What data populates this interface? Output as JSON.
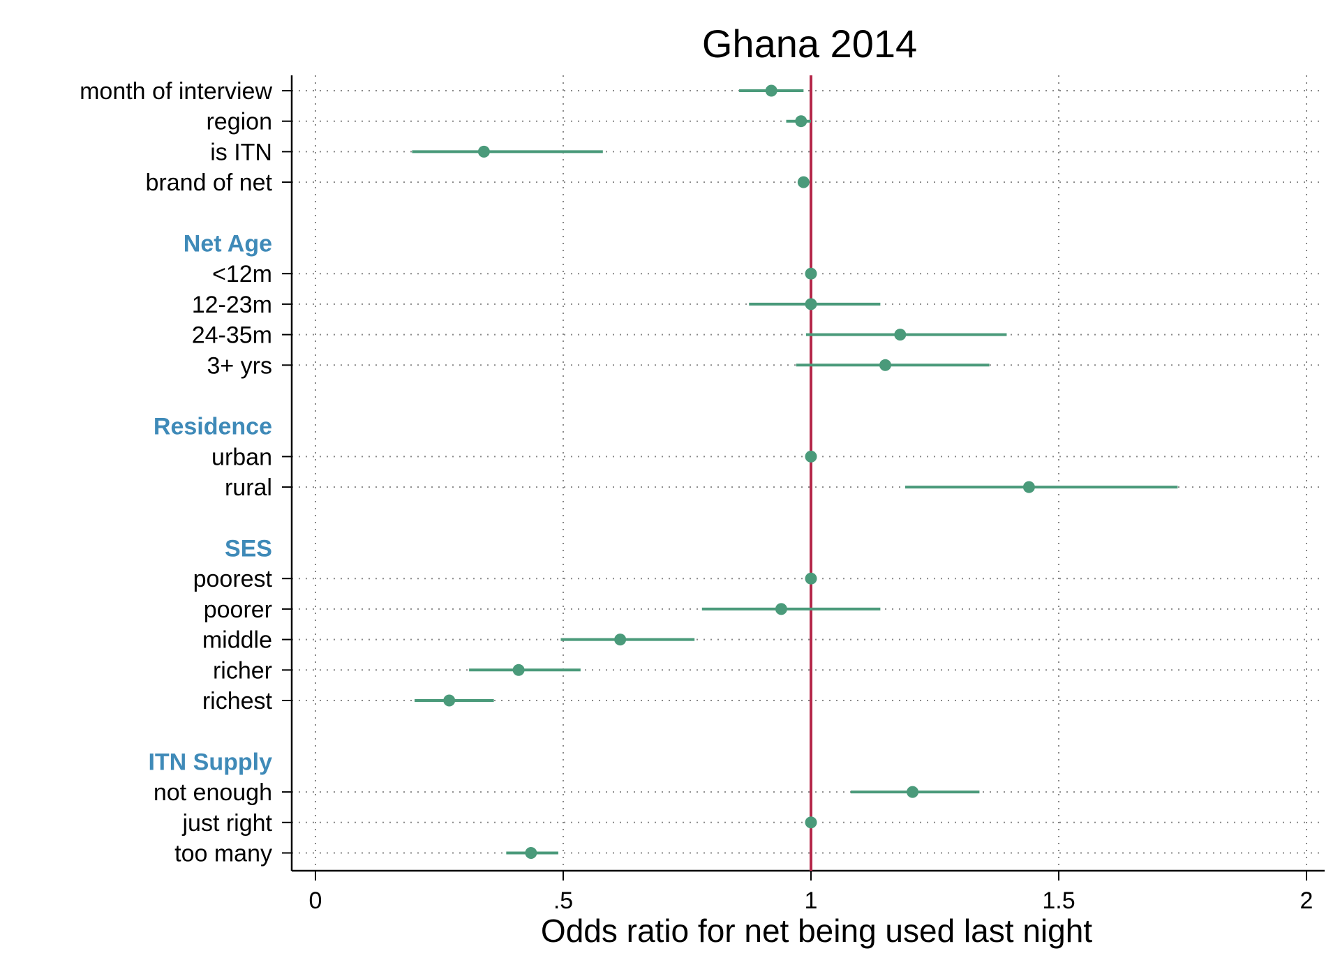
{
  "chart_data": {
    "type": "scatter",
    "subtype": "coefficient-plot",
    "title": "Ghana 2014",
    "xlabel": "Odds ratio for net being used last night",
    "ylabel": "",
    "xlim": [
      0,
      2
    ],
    "xticks": [
      {
        "value": 0,
        "label": "0"
      },
      {
        "value": 0.5,
        "label": ".5"
      },
      {
        "value": 1,
        "label": "1"
      },
      {
        "value": 1.5,
        "label": "1.5"
      },
      {
        "value": 2,
        "label": "2"
      }
    ],
    "grid": true,
    "reference_line": 1,
    "colors": {
      "point": "#4a9a7a",
      "reference": "#b5284a",
      "header": "#3f8ab8",
      "grid": "#888888"
    },
    "rows": [
      {
        "label": "month of interview",
        "estimate": 0.92,
        "ci": [
          0.855,
          0.985
        ]
      },
      {
        "label": "region",
        "estimate": 0.98,
        "ci": [
          0.95,
          1.0
        ]
      },
      {
        "label": "is ITN",
        "estimate": 0.34,
        "ci": [
          0.195,
          0.58
        ]
      },
      {
        "label": "brand of net",
        "estimate": 0.985,
        "ci": [
          0.985,
          0.985
        ]
      },
      {
        "label": "",
        "spacer": true
      },
      {
        "label": "Net Age",
        "header": true
      },
      {
        "label": "<12m",
        "estimate": 1.0,
        "ci": [
          1.0,
          1.0
        ]
      },
      {
        "label": "12-23m",
        "estimate": 1.0,
        "ci": [
          0.875,
          1.14
        ]
      },
      {
        "label": "24-35m",
        "estimate": 1.18,
        "ci": [
          0.99,
          1.395
        ]
      },
      {
        "label": "3+ yrs",
        "estimate": 1.15,
        "ci": [
          0.97,
          1.36
        ]
      },
      {
        "label": "",
        "spacer": true
      },
      {
        "label": "Residence",
        "header": true
      },
      {
        "label": "urban",
        "estimate": 1.0,
        "ci": [
          1.0,
          1.0
        ]
      },
      {
        "label": "rural",
        "estimate": 1.44,
        "ci": [
          1.19,
          1.74
        ]
      },
      {
        "label": "",
        "spacer": true
      },
      {
        "label": "SES",
        "header": true
      },
      {
        "label": "poorest",
        "estimate": 1.0,
        "ci": [
          1.0,
          1.0
        ]
      },
      {
        "label": "poorer",
        "estimate": 0.94,
        "ci": [
          0.78,
          1.14
        ]
      },
      {
        "label": "middle",
        "estimate": 0.615,
        "ci": [
          0.495,
          0.765
        ]
      },
      {
        "label": "richer",
        "estimate": 0.41,
        "ci": [
          0.31,
          0.535
        ]
      },
      {
        "label": "richest",
        "estimate": 0.27,
        "ci": [
          0.2,
          0.36
        ]
      },
      {
        "label": "",
        "spacer": true
      },
      {
        "label": "ITN Supply",
        "header": true
      },
      {
        "label": "not enough",
        "estimate": 1.205,
        "ci": [
          1.08,
          1.34
        ]
      },
      {
        "label": "just right",
        "estimate": 1.0,
        "ci": [
          1.0,
          1.0
        ]
      },
      {
        "label": "too many",
        "estimate": 0.435,
        "ci": [
          0.385,
          0.49
        ]
      }
    ]
  }
}
